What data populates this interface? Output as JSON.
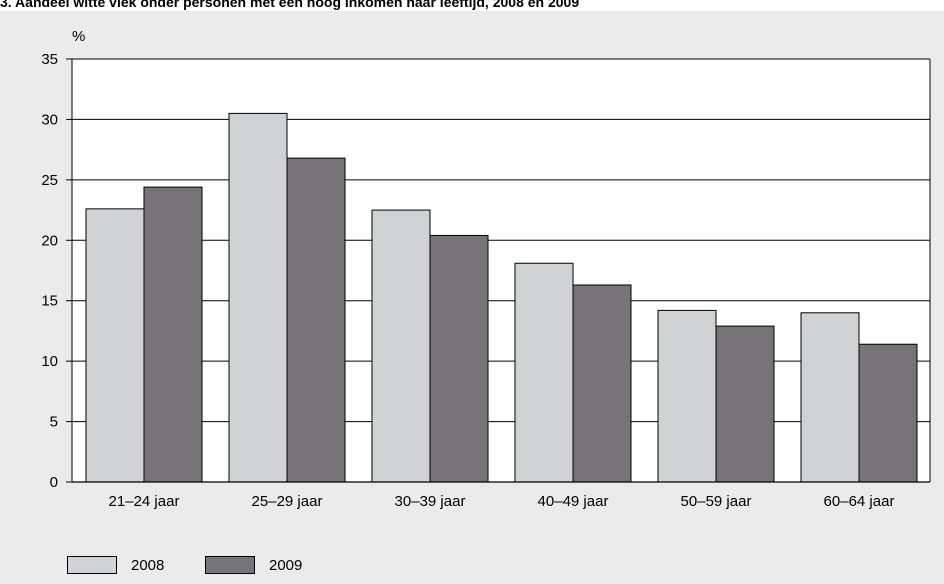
{
  "title": "3. Aandeel witte vlek onder personen met een hoog inkomen naar leeftijd, 2008 en 2009",
  "chart_data": {
    "type": "bar",
    "title": "3. Aandeel witte vlek onder personen met een hoog inkomen naar leeftijd, 2008 en 2009",
    "ylabel": "%",
    "xlabel": "",
    "ylim": [
      0,
      35
    ],
    "yticks": [
      0,
      5,
      10,
      15,
      20,
      25,
      30,
      35
    ],
    "grid": true,
    "legend_position": "bottom-left",
    "categories": [
      "21–24 jaar",
      "25–29 jaar",
      "30–39 jaar",
      "40–49 jaar",
      "50–59 jaar",
      "60–64 jaar"
    ],
    "series": [
      {
        "name": "2008",
        "color": "#d1d2d4",
        "values": [
          22.6,
          30.5,
          22.5,
          18.1,
          14.2,
          14.0
        ]
      },
      {
        "name": "2009",
        "color": "#767477",
        "values": [
          24.4,
          26.8,
          20.4,
          16.3,
          12.9,
          11.4
        ]
      }
    ]
  }
}
